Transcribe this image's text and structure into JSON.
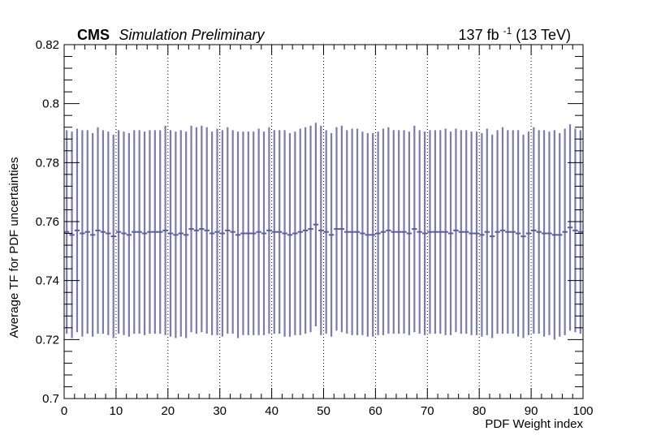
{
  "header": {
    "experiment": "CMS",
    "status": "Simulation Preliminary",
    "lumi_value": "137 fb",
    "lumi_exp": "-1",
    "lumi_energy": " (13 TeV)"
  },
  "chart_data": {
    "type": "scatter",
    "title": "",
    "xlabel": "PDF Weight index",
    "ylabel": "Average TF for PDF uncertainties",
    "xlim": [
      0,
      100
    ],
    "ylim": [
      0.7,
      0.82
    ],
    "x_ticks": [
      0,
      10,
      20,
      30,
      40,
      50,
      60,
      70,
      80,
      90,
      100
    ],
    "y_ticks": [
      0.7,
      0.72,
      0.74,
      0.76,
      0.78,
      0.8,
      0.82
    ],
    "x_tick_labels": [
      "0",
      "10",
      "20",
      "30",
      "40",
      "50",
      "60",
      "70",
      "80",
      "90",
      "100"
    ],
    "y_tick_labels": [
      "0.7",
      "0.72",
      "0.74",
      "0.76",
      "0.78",
      "0.8",
      "0.82"
    ],
    "grid": "vertical dotted at major x ticks",
    "marker_color": "#5c5c9e",
    "errorbar_color": "#7a7ab8",
    "series": [
      {
        "bin_width": 1,
        "x": [
          1,
          2,
          3,
          4,
          5,
          6,
          7,
          8,
          9,
          10,
          11,
          12,
          13,
          14,
          15,
          16,
          17,
          18,
          19,
          20,
          21,
          22,
          23,
          24,
          25,
          26,
          27,
          28,
          29,
          30,
          31,
          32,
          33,
          34,
          35,
          36,
          37,
          38,
          39,
          40,
          41,
          42,
          43,
          44,
          45,
          46,
          47,
          48,
          49,
          50,
          51,
          52,
          53,
          54,
          55,
          56,
          57,
          58,
          59,
          60,
          61,
          62,
          63,
          64,
          65,
          66,
          67,
          68,
          69,
          70,
          71,
          72,
          73,
          74,
          75,
          76,
          77,
          78,
          79,
          80,
          81,
          82,
          83,
          84,
          85,
          86,
          87,
          88,
          89,
          90,
          91,
          92,
          93,
          94,
          95,
          96,
          97,
          98,
          99,
          100
        ],
        "y": [
          0.7565,
          0.7555,
          0.757,
          0.756,
          0.7565,
          0.7555,
          0.757,
          0.7565,
          0.756,
          0.755,
          0.7565,
          0.756,
          0.7555,
          0.7565,
          0.7565,
          0.756,
          0.7565,
          0.7565,
          0.7565,
          0.757,
          0.756,
          0.7555,
          0.756,
          0.7555,
          0.7575,
          0.757,
          0.7575,
          0.757,
          0.756,
          0.7565,
          0.756,
          0.757,
          0.7565,
          0.7555,
          0.756,
          0.756,
          0.756,
          0.7565,
          0.756,
          0.757,
          0.7565,
          0.7565,
          0.756,
          0.7555,
          0.756,
          0.7565,
          0.757,
          0.7575,
          0.759,
          0.757,
          0.7565,
          0.7555,
          0.7575,
          0.7575,
          0.7565,
          0.7565,
          0.7565,
          0.756,
          0.7555,
          0.7555,
          0.756,
          0.7565,
          0.757,
          0.7565,
          0.7565,
          0.7565,
          0.756,
          0.7575,
          0.7565,
          0.756,
          0.7565,
          0.7565,
          0.7565,
          0.7565,
          0.756,
          0.757,
          0.7565,
          0.7565,
          0.756,
          0.756,
          0.7555,
          0.7565,
          0.755,
          0.7565,
          0.757,
          0.7565,
          0.7565,
          0.756,
          0.755,
          0.756,
          0.757,
          0.7565,
          0.756,
          0.756,
          0.7555,
          0.7555,
          0.7565,
          0.758,
          0.757,
          0.7565
        ],
        "err": [
          0.0345,
          0.035,
          0.0345,
          0.035,
          0.0345,
          0.0345,
          0.035,
          0.0345,
          0.0345,
          0.0345,
          0.0345,
          0.0345,
          0.0345,
          0.0345,
          0.0345,
          0.0345,
          0.0345,
          0.0345,
          0.0345,
          0.0355,
          0.035,
          0.035,
          0.035,
          0.035,
          0.035,
          0.035,
          0.035,
          0.035,
          0.0345,
          0.035,
          0.035,
          0.035,
          0.0345,
          0.035,
          0.0345,
          0.0345,
          0.0345,
          0.035,
          0.0345,
          0.035,
          0.0345,
          0.0345,
          0.035,
          0.0345,
          0.0345,
          0.035,
          0.035,
          0.035,
          0.0345,
          0.0355,
          0.0345,
          0.0345,
          0.0345,
          0.035,
          0.0345,
          0.035,
          0.035,
          0.0345,
          0.0345,
          0.0345,
          0.0345,
          0.035,
          0.035,
          0.0345,
          0.0345,
          0.0345,
          0.0345,
          0.035,
          0.0345,
          0.0345,
          0.0345,
          0.0345,
          0.0345,
          0.035,
          0.0345,
          0.0345,
          0.0345,
          0.0345,
          0.0345,
          0.0345,
          0.0345,
          0.035,
          0.0345,
          0.0345,
          0.035,
          0.0345,
          0.0345,
          0.035,
          0.0345,
          0.0345,
          0.035,
          0.0345,
          0.035,
          0.0345,
          0.0355,
          0.0345,
          0.035,
          0.035,
          0.0345,
          0.0345
        ]
      }
    ]
  }
}
